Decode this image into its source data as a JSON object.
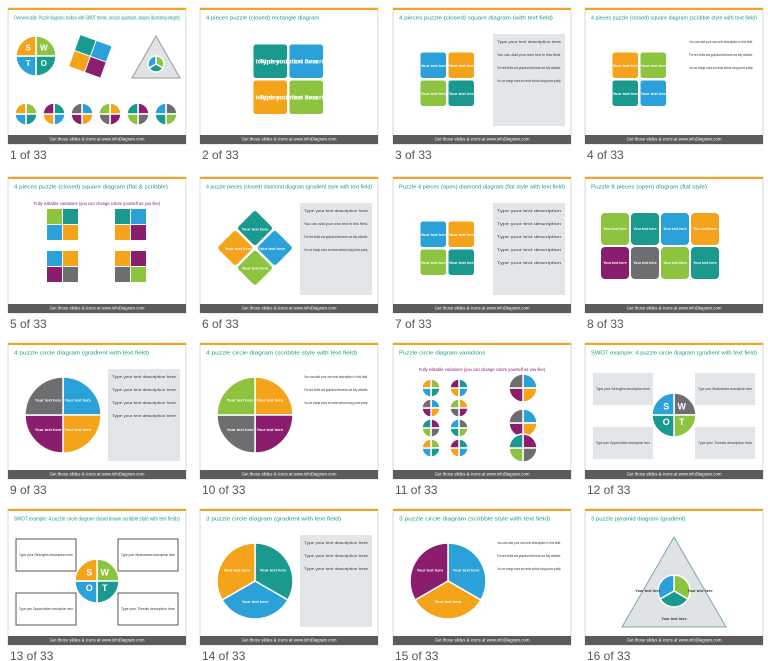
{
  "footer": "Get those slides & icons at www.infoDiagram.com",
  "slides": [
    {
      "title": "Overview slide: Puzzle diagrams toolbox with SWOT theme, circular quadrants, shapes illustrating integrity",
      "caption": "1 of 33",
      "piece_labels": [
        "S",
        "W",
        "O",
        "T"
      ],
      "field_text": []
    },
    {
      "title": "4 pieces puzzle (closed) rectangle diagram",
      "caption": "2 of 33",
      "piece_labels": [
        "Type your text description here",
        "Type your text description here",
        "Type your text description here",
        "Type your text description here"
      ],
      "field_text": []
    },
    {
      "title": "4 pieces puzzle (closed) square diagram (with text field)",
      "caption": "3 of 33",
      "piece_labels": [
        "Your text here",
        "Your text here",
        "Your text here",
        "Your text here"
      ],
      "field_text": [
        "Type your text description here",
        "You can add your own text in this field.",
        "The text fields and graphical elements are fully editable.",
        "You can change colors and resize without losing picture quality."
      ]
    },
    {
      "title": "4 pieces puzzle (closed) square diagram (scribble style with text field)",
      "caption": "4 of 33",
      "piece_labels": [
        "Your text here",
        "Your text here",
        "Your text here",
        "Your text here"
      ],
      "field_text": [
        "You can add your own text description in this field.",
        "The text fields and graphical elements are fully editable.",
        "You can change colors and resize without losing picture quality."
      ]
    },
    {
      "title": "4 pieces puzzle (closed) square diagram (flat & scribble)",
      "caption": "5 of 33",
      "subtitle": "Fully editable variations (you can change colors yourself as you like)",
      "piece_labels": [],
      "field_text": []
    },
    {
      "title": "4 puzzle pieces (closed) diamond diagram (gradient style with text field)",
      "caption": "6 of 33",
      "piece_labels": [
        "Your text here",
        "Your text here",
        "Your text here",
        "Your text here"
      ],
      "field_text": [
        "Type your text description here",
        "You can add your own text in this field.",
        "The text fields and graphical elements are fully editable.",
        "You can change colors and resize without losing picture quality."
      ]
    },
    {
      "title": "Puzzle 4 pieces (open) diamond diagram (flat style with text field)",
      "caption": "7 of 33",
      "piece_labels": [
        "Your text here",
        "Your text here",
        "Your text here",
        "Your text here"
      ],
      "field_text": [
        "Type your text description",
        "Type your text description",
        "Type your text description",
        "Type your text description",
        "Type your text description"
      ]
    },
    {
      "title": "Puzzle 8 pieces (open) diagram (flat style)",
      "caption": "8 of 33",
      "piece_labels": [
        "Your text here",
        "Your text here",
        "Your text here",
        "Your text here",
        "Your text here",
        "Your text here",
        "Your text here",
        "Your text here"
      ],
      "field_text": []
    },
    {
      "title": "4 puzzle circle diagram (gradient with text field)",
      "caption": "9 of 33",
      "piece_labels": [
        "Your text here",
        "Your text here",
        "Your text here",
        "Your text here"
      ],
      "field_text": [
        "Type your text description here",
        "Type your text description here",
        "Type your text description here",
        "Type your text description here"
      ]
    },
    {
      "title": "4 puzzle circle diagram (scribble style with text field)",
      "caption": "10 of 33",
      "piece_labels": [
        "Your text here",
        "Your text here",
        "Your text here",
        "Your text here"
      ],
      "field_text": [
        "You can add your own text description in this field.",
        "The text fields and graphical elements are fully editable.",
        "You can change colors and resize without losing picture quality."
      ]
    },
    {
      "title": "Puzzle circle diagram variations",
      "caption": "11 of 33",
      "subtitle": "Fully editable variations (you can change colors yourself as you like)",
      "piece_labels": [],
      "field_text": []
    },
    {
      "title": "SWOT example: 4 puzzle circle diagram (gradient with text field)",
      "caption": "12 of 33",
      "piece_labels": [
        "S",
        "W",
        "O",
        "T"
      ],
      "field_text": [
        "Type your Strengths description here",
        "Type your Weaknesses description here",
        "Type your Opportunities description here",
        "Type your Threats description here"
      ]
    },
    {
      "title": "SWOT example: 4 puzzle circle diagram (hand drawn scribble style with text fields)",
      "caption": "13 of 33",
      "piece_labels": [
        "S",
        "W",
        "O",
        "T"
      ],
      "field_text": [
        "Type your Strengths description here",
        "Type your Weaknesses description here",
        "Type your Opportunities description here",
        "Type your Threats description here"
      ]
    },
    {
      "title": "3 puzzle circle diagram (gradient with text field)",
      "caption": "14 of 33",
      "piece_labels": [
        "Your text here",
        "Your text here",
        "Your text here"
      ],
      "field_text": [
        "Type your text description here",
        "Type your text description here",
        "Type your text description here"
      ]
    },
    {
      "title": "3 puzzle circle diagram (scribble style with text field)",
      "caption": "15 of 33",
      "piece_labels": [
        "Your text here",
        "Your text here",
        "Your text here"
      ],
      "field_text": [
        "You can add your own text description in this field.",
        "The text fields and graphical elements are fully editable.",
        "You can change colors and resize without losing picture quality."
      ]
    },
    {
      "title": "3 puzzle pyramid diagram (gradient)",
      "caption": "16 of 33",
      "piece_labels": [
        "Your text here",
        "Your text here",
        "Your text here"
      ],
      "field_text": []
    }
  ]
}
